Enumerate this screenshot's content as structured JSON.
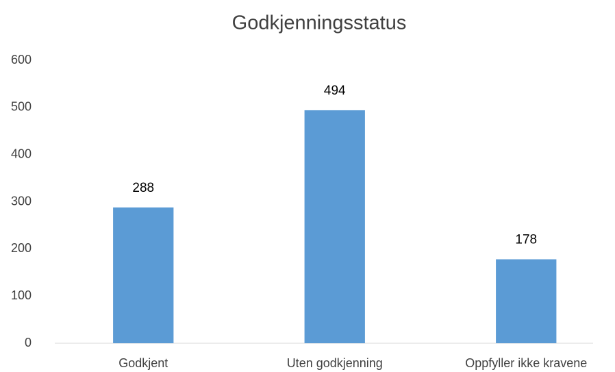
{
  "chart_data": {
    "type": "bar",
    "title": "Godkjenningsstatus",
    "categories": [
      "Godkjent",
      "Uten godkjenning",
      "Oppfyller ikke kravene"
    ],
    "values": [
      288,
      494,
      178
    ],
    "color": "#5b9bd5",
    "ylim": [
      0,
      600
    ],
    "yticks": [
      0,
      100,
      200,
      300,
      400,
      500,
      600
    ],
    "grid": false,
    "data_labels": true
  }
}
